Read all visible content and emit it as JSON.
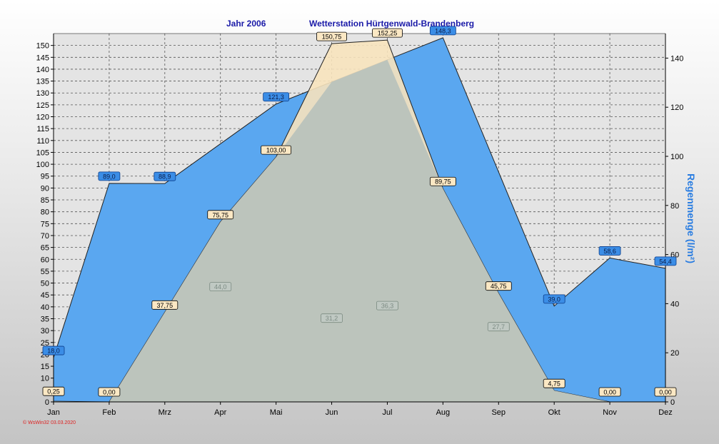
{
  "header": {
    "year_label": "Jahr  2006",
    "station_label": "Wetterstation Hürtgenwald-Brandenberg"
  },
  "footer": {
    "text": "© WsWin32  03.03.2020"
  },
  "chart_data": {
    "type": "area",
    "categories": [
      "Jan",
      "Feb",
      "Mrz",
      "Apr",
      "Mai",
      "Jun",
      "Jul",
      "Aug",
      "Sep",
      "Okt",
      "Nov",
      "Dez"
    ],
    "y_left": {
      "label": "",
      "ylim": [
        0,
        155
      ],
      "ticks": [
        0,
        5,
        10,
        15,
        20,
        25,
        30,
        35,
        40,
        45,
        50,
        55,
        60,
        65,
        70,
        75,
        80,
        85,
        90,
        95,
        100,
        105,
        110,
        115,
        120,
        125,
        130,
        135,
        140,
        145,
        150
      ]
    },
    "y_right": {
      "label": "Regenmenge   (l/m²)",
      "ylim": [
        0,
        150
      ],
      "ticks": [
        0,
        20,
        40,
        60,
        80,
        100,
        120,
        140
      ]
    },
    "grid": true,
    "series": [
      {
        "axis": "right",
        "color": "#5aa7f0",
        "values": [
          18.0,
          89.0,
          88.9,
          null,
          121.3,
          null,
          null,
          148.3,
          null,
          39.0,
          58.6,
          54.4
        ],
        "labels": [
          "18,0",
          "89,0",
          "88,9",
          "",
          "121,3",
          "",
          "",
          "148,3",
          "",
          "39,0",
          "58,6",
          "54,4"
        ]
      },
      {
        "axis": "left",
        "color": "#f7e3bd",
        "values": [
          0.25,
          0.0,
          37.75,
          75.75,
          103.0,
          150.75,
          152.25,
          89.75,
          45.75,
          4.75,
          0.0,
          0.0
        ],
        "labels": [
          "0,25",
          "0,00",
          "37,75",
          "75,75",
          "103,00",
          "150,75",
          "152,25",
          "89,75",
          "45,75",
          "4,75",
          "0,00",
          "0,00"
        ]
      },
      {
        "axis": "right",
        "color": "#b9c2bc",
        "values": [
          null,
          null,
          null,
          44.0,
          null,
          31.2,
          36.3,
          null,
          27.7,
          null,
          null,
          null
        ],
        "labels": [
          "",
          "",
          "",
          "44,0",
          "",
          "31,2",
          "36,3",
          "",
          "27,7",
          "",
          "",
          ""
        ]
      }
    ]
  }
}
